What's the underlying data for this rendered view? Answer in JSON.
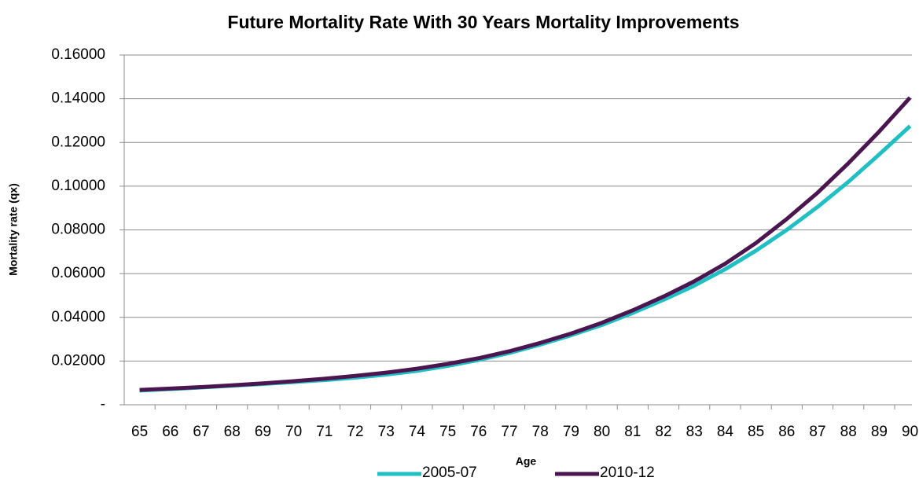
{
  "chart_data": {
    "type": "line",
    "title": "Future Mortality Rate With 30 Years Mortality Improvements",
    "x_label": "Age",
    "y_label": "Mortality rate (qx)",
    "categories": [
      "65",
      "66",
      "67",
      "68",
      "69",
      "70",
      "71",
      "72",
      "73",
      "74",
      "75",
      "76",
      "77",
      "78",
      "79",
      "80",
      "81",
      "82",
      "83",
      "84",
      "85",
      "86",
      "87",
      "88",
      "89",
      "90"
    ],
    "series": [
      {
        "name": "2005-07",
        "color": "#1fbfc4",
        "values": [
          0.0065,
          0.0072,
          0.0079,
          0.0087,
          0.0095,
          0.0104,
          0.0113,
          0.0124,
          0.0138,
          0.0155,
          0.0178,
          0.0205,
          0.0237,
          0.0275,
          0.0318,
          0.0365,
          0.042,
          0.048,
          0.0545,
          0.062,
          0.0705,
          0.08,
          0.0905,
          0.102,
          0.1145,
          0.1275
        ]
      },
      {
        "name": "2010-12",
        "color": "#4b1650",
        "values": [
          0.0068,
          0.0074,
          0.0081,
          0.0089,
          0.0098,
          0.0108,
          0.0119,
          0.0132,
          0.0147,
          0.0165,
          0.0187,
          0.0213,
          0.0245,
          0.0283,
          0.0326,
          0.0375,
          0.0432,
          0.0495,
          0.0565,
          0.0645,
          0.074,
          0.085,
          0.097,
          0.1105,
          0.125,
          0.1405
        ]
      }
    ],
    "ylim": [
      0,
      0.16
    ],
    "yticks": [
      {
        "value": 0,
        "label": "-"
      },
      {
        "value": 0.02,
        "label": "0.02000"
      },
      {
        "value": 0.04,
        "label": "0.04000"
      },
      {
        "value": 0.06,
        "label": "0.06000"
      },
      {
        "value": 0.08,
        "label": "0.08000"
      },
      {
        "value": 0.1,
        "label": "0.10000"
      },
      {
        "value": 0.12,
        "label": "0.12000"
      },
      {
        "value": 0.14,
        "label": "0.14000"
      },
      {
        "value": 0.16,
        "label": "0.16000"
      }
    ],
    "grid": true,
    "legend": "bottom"
  }
}
